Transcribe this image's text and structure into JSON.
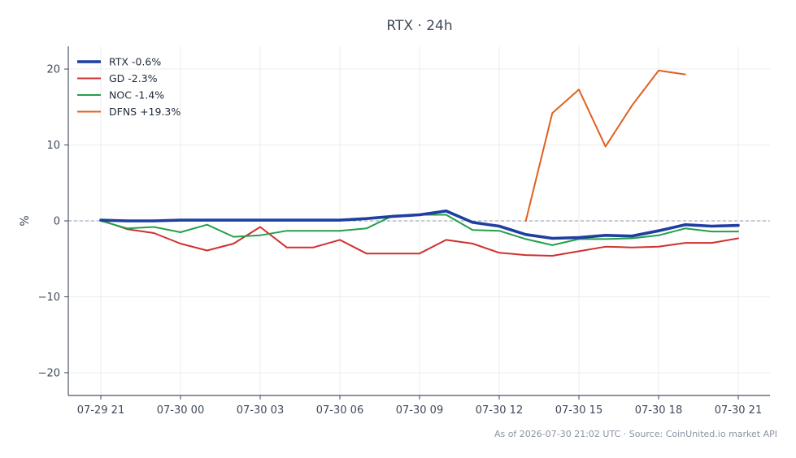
{
  "chart_data": {
    "type": "line",
    "title": "RTX · 24h",
    "ylabel": "%",
    "xlabel": "",
    "footnote": "As of 2026-07-30 21:02 UTC · Source: CoinUnited.io market API",
    "x": [
      "07-29 21",
      "07-29 22",
      "07-29 23",
      "07-30 00",
      "07-30 01",
      "07-30 02",
      "07-30 03",
      "07-30 04",
      "07-30 05",
      "07-30 06",
      "07-30 07",
      "07-30 08",
      "07-30 09",
      "07-30 10",
      "07-30 11",
      "07-30 12",
      "07-30 13",
      "07-30 14",
      "07-30 15",
      "07-30 16",
      "07-30 17",
      "07-30 18",
      "07-30 19",
      "07-30 20",
      "07-30 21"
    ],
    "xticks": [
      "07-29 21",
      "07-30 00",
      "07-30 03",
      "07-30 06",
      "07-30 09",
      "07-30 12",
      "07-30 15",
      "07-30 18",
      "07-30 21"
    ],
    "ylim": [
      -23,
      23
    ],
    "yticks": [
      20,
      10,
      0,
      -10,
      -20
    ],
    "ytick_labels": [
      "20",
      "10",
      "0",
      "−10",
      "−20"
    ],
    "grid": true,
    "zero_line": true,
    "legend_position": "top-left",
    "series": [
      {
        "name": "RTX -0.6%",
        "color": "#1f3fa0",
        "emphasis": true,
        "values": [
          0.1,
          0.0,
          0.0,
          0.1,
          0.1,
          0.1,
          0.1,
          0.1,
          0.1,
          0.1,
          0.3,
          0.6,
          0.8,
          1.3,
          -0.2,
          -0.7,
          -1.8,
          -2.3,
          -2.2,
          -1.9,
          -2.0,
          -1.3,
          -0.5,
          -0.7,
          -0.6
        ]
      },
      {
        "name": "GD -2.3%",
        "color": "#d03030",
        "emphasis": false,
        "values": [
          0.1,
          -1.1,
          -1.6,
          -3.0,
          -3.9,
          -3.0,
          -0.8,
          -3.5,
          -3.5,
          -2.5,
          -4.3,
          -4.3,
          -4.3,
          -2.5,
          -3.0,
          -4.2,
          -4.5,
          -4.6,
          -4.0,
          -3.4,
          -3.5,
          -3.4,
          -2.9,
          -2.9,
          -2.3
        ]
      },
      {
        "name": "NOC -1.4%",
        "color": "#22a04a",
        "emphasis": false,
        "values": [
          0.0,
          -1.0,
          -0.8,
          -1.5,
          -0.5,
          -2.1,
          -1.9,
          -1.3,
          -1.3,
          -1.3,
          -1.0,
          0.7,
          0.8,
          0.8,
          -1.2,
          -1.3,
          -2.4,
          -3.2,
          -2.4,
          -2.4,
          -2.3,
          -1.9,
          -1.0,
          -1.4,
          -1.4
        ]
      },
      {
        "name": "DFNS +19.3%",
        "color": "#e06020",
        "emphasis": false,
        "values": [
          null,
          null,
          null,
          null,
          null,
          null,
          null,
          null,
          null,
          null,
          null,
          null,
          null,
          null,
          null,
          null,
          0.0,
          14.2,
          17.3,
          9.8,
          15.2,
          19.8,
          19.3,
          null,
          null
        ]
      }
    ]
  }
}
